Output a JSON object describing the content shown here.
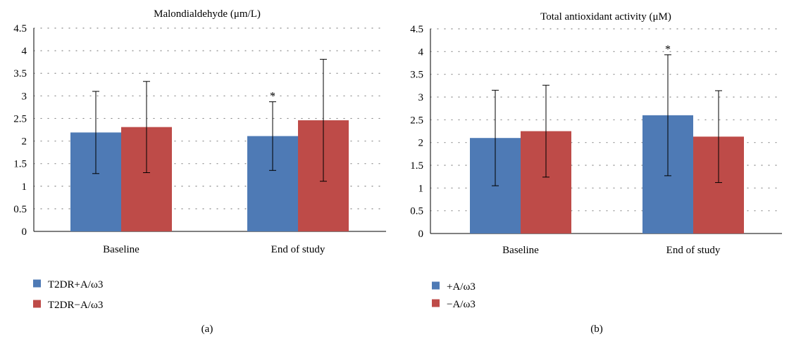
{
  "chart_data": [
    {
      "type": "bar",
      "title": "Malondialdehyde (μm/L)",
      "panel_label": "(a)",
      "categories": [
        "Baseline",
        "End of study"
      ],
      "ylim": [
        0,
        4.5
      ],
      "yticks": [
        "0",
        "0.5",
        "1",
        "1.5",
        "2",
        "2.5",
        "3",
        "3.5",
        "4",
        "4.5"
      ],
      "grid": "dotted horizontal",
      "legend_position": "bottom-left",
      "series": [
        {
          "name": "T2DR+A/ω3",
          "color": "#4e7ab5",
          "values": [
            2.19,
            2.11
          ],
          "error": [
            0.91,
            0.76
          ]
        },
        {
          "name": "T2DR−A/ω3",
          "color": "#be4b48",
          "values": [
            2.31,
            2.46
          ],
          "error": [
            1.01,
            1.35
          ]
        }
      ],
      "annotations": [
        {
          "text": "*",
          "category": 1,
          "series": 0
        }
      ]
    },
    {
      "type": "bar",
      "title": "Total antioxidant activity (μM)",
      "panel_label": "(b)",
      "categories": [
        "Baseline",
        "End of study"
      ],
      "ylim": [
        0,
        4.5
      ],
      "yticks": [
        "0",
        "0.5",
        "1",
        "1.5",
        "2",
        "2.5",
        "3",
        "3.5",
        "4",
        "4.5"
      ],
      "grid": "dotted horizontal",
      "legend_position": "bottom-left",
      "series": [
        {
          "name": "+A/ω3",
          "color": "#4e7ab5",
          "values": [
            2.1,
            2.6
          ],
          "error": [
            1.05,
            1.33
          ]
        },
        {
          "name": "−A/ω3",
          "color": "#be4b48",
          "values": [
            2.25,
            2.13
          ],
          "error": [
            1.01,
            1.01
          ]
        }
      ],
      "annotations": [
        {
          "text": "*",
          "category": 1,
          "series": 0
        }
      ]
    }
  ]
}
